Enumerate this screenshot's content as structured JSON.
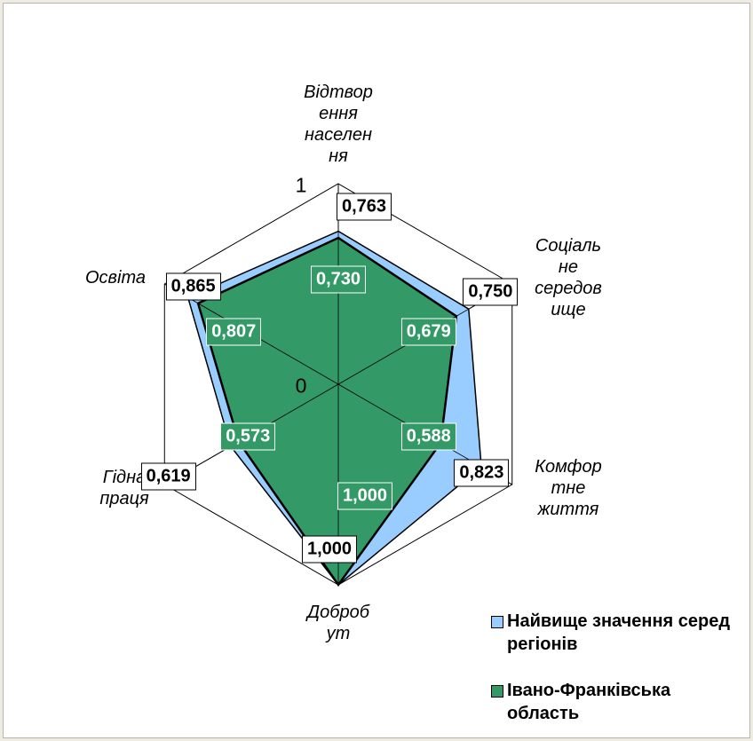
{
  "chart_data": {
    "type": "radar",
    "categories": [
      "Відтворення населення",
      "Соціальне середовище",
      "Комфортне життя",
      "Добробут",
      "Гідна праця",
      "Освіта"
    ],
    "series": [
      {
        "name": "Найвище значення серед регіонів",
        "color": "#99ccff",
        "values": [
          0.763,
          0.75,
          0.823,
          1.0,
          0.619,
          0.865
        ],
        "value_labels": [
          "0,763",
          "0,750",
          "0,823",
          "1,000",
          "0,619",
          "0,865"
        ]
      },
      {
        "name": "Івано-Франківська область",
        "color": "#339966",
        "values": [
          0.73,
          0.679,
          0.588,
          1.0,
          0.573,
          0.807
        ],
        "value_labels": [
          "0,730",
          "0,679",
          "0,588",
          "1,000",
          "0,573",
          "0,807"
        ]
      }
    ],
    "ylim": [
      0,
      1
    ],
    "yticks": [
      0,
      1
    ],
    "grid": true,
    "legend": "lower right"
  }
}
